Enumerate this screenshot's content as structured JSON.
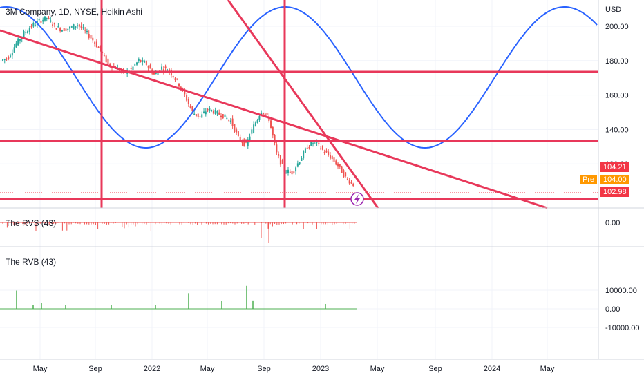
{
  "title": "3M Company, 1D, NYSE, Heikin Ashi",
  "currency": "USD",
  "price_tags": {
    "pre_label": "Pre",
    "high": "104.21",
    "pre": "104.00",
    "last": "102.98"
  },
  "indicators": {
    "rvs": "The RVS (43)",
    "rvb": "The RVB (43)"
  },
  "colors": {
    "price_up": "#26a69a",
    "price_down": "#ef5350",
    "trendline": "#e8385a",
    "cycle": "#2962ff",
    "rvs": "#ef5350",
    "rvb": "#4caf50",
    "pre_tag": "#ff9800",
    "tag": "#f23645"
  },
  "chart_data": [
    {
      "type": "line",
      "name": "price",
      "y_ticks": [
        "200.00",
        "180.00",
        "160.00",
        "140.00",
        "120.00"
      ],
      "x_ticks": [
        "May",
        "Sep",
        "2022",
        "May",
        "Sep",
        "2023",
        "May",
        "Sep",
        "2024",
        "May"
      ],
      "series": [
        {
          "values": [
            180,
            182,
            190,
            196,
            200,
            203,
            205,
            200,
            198,
            199,
            201,
            197,
            192,
            186,
            178,
            176,
            173,
            175,
            180,
            178,
            172,
            176,
            174,
            168,
            160,
            150,
            147,
            152,
            150,
            148,
            145,
            135,
            131,
            142,
            151,
            146,
            126,
            116,
            115,
            122,
            130,
            133,
            128,
            124,
            119,
            112,
            108
          ]
        }
      ],
      "horizontal_levels": [
        173.5,
        133.5,
        99.5
      ],
      "vertical_markers": [
        "Sep 2021",
        "Oct 2022"
      ]
    },
    {
      "type": "bar",
      "name": "The RVS (43)",
      "y_ticks": [
        "0.00"
      ]
    },
    {
      "type": "bar",
      "name": "The RVB (43)",
      "y_ticks": [
        "10000.00",
        "0.00",
        "-10000.00"
      ]
    }
  ]
}
